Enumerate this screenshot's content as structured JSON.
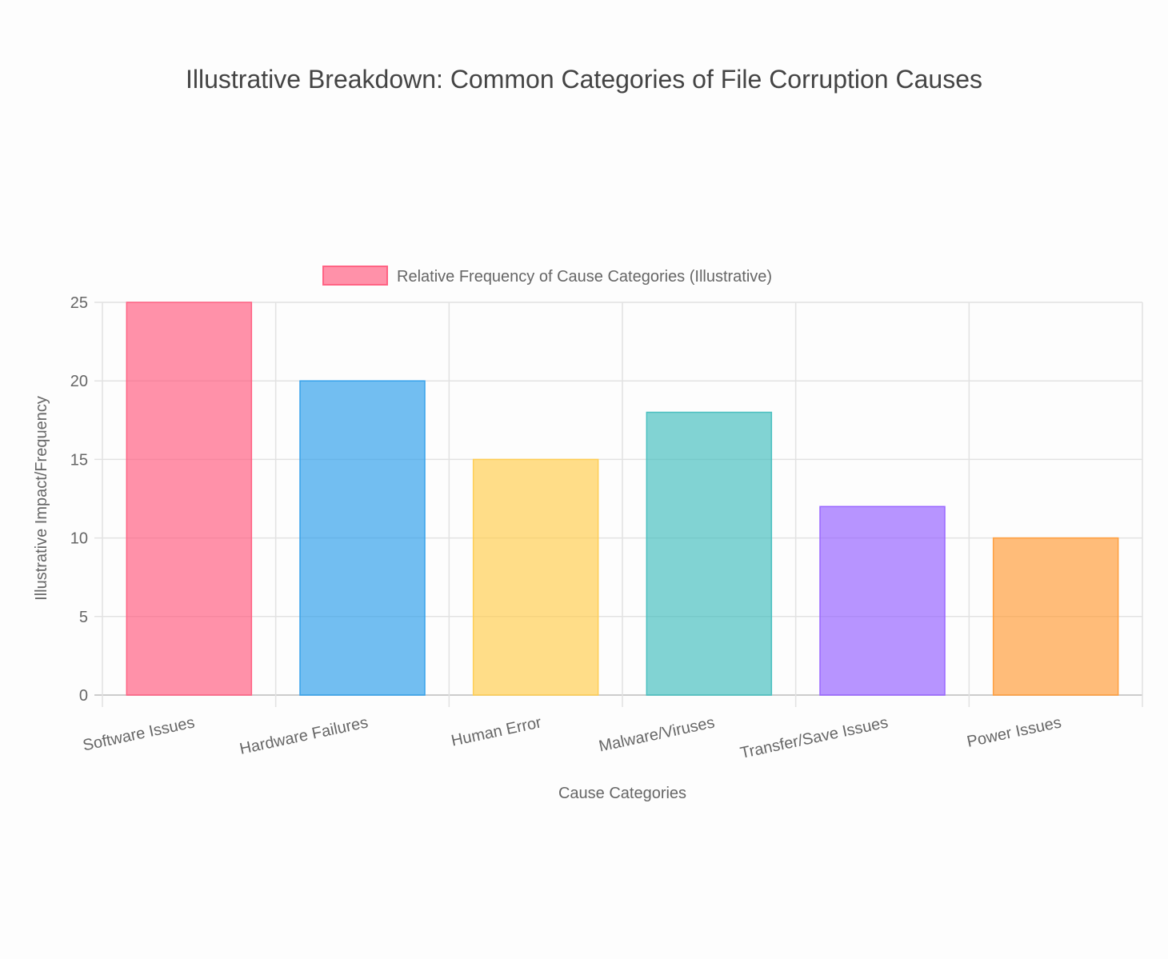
{
  "chart_data": {
    "type": "bar",
    "title": "Illustrative Breakdown: Common Categories of File Corruption Causes",
    "xlabel": "Cause Categories",
    "ylabel": "Illustrative Impact/Frequency",
    "legend": {
      "label": "Relative Frequency of Cause Categories (Illustrative)",
      "position": "top"
    },
    "categories": [
      "Software Issues",
      "Hardware Failures",
      "Human Error",
      "Malware/Viruses",
      "Transfer/Save Issues",
      "Power Issues"
    ],
    "values": [
      25,
      20,
      15,
      18,
      12,
      10
    ],
    "ylim": [
      0,
      25
    ],
    "yticks": [
      0,
      5,
      10,
      15,
      20,
      25
    ],
    "grid": true,
    "colors": {
      "fill": [
        "rgba(255,99,132,0.7)",
        "rgba(54,162,235,0.7)",
        "rgba(255,206,86,0.7)",
        "rgba(75,192,192,0.7)",
        "rgba(153,102,255,0.7)",
        "rgba(255,159,64,0.7)"
      ],
      "border": [
        "#ff6384",
        "#36a2eb",
        "#ffce56",
        "#4bc0c0",
        "#9966ff",
        "#ff9f40"
      ]
    }
  }
}
